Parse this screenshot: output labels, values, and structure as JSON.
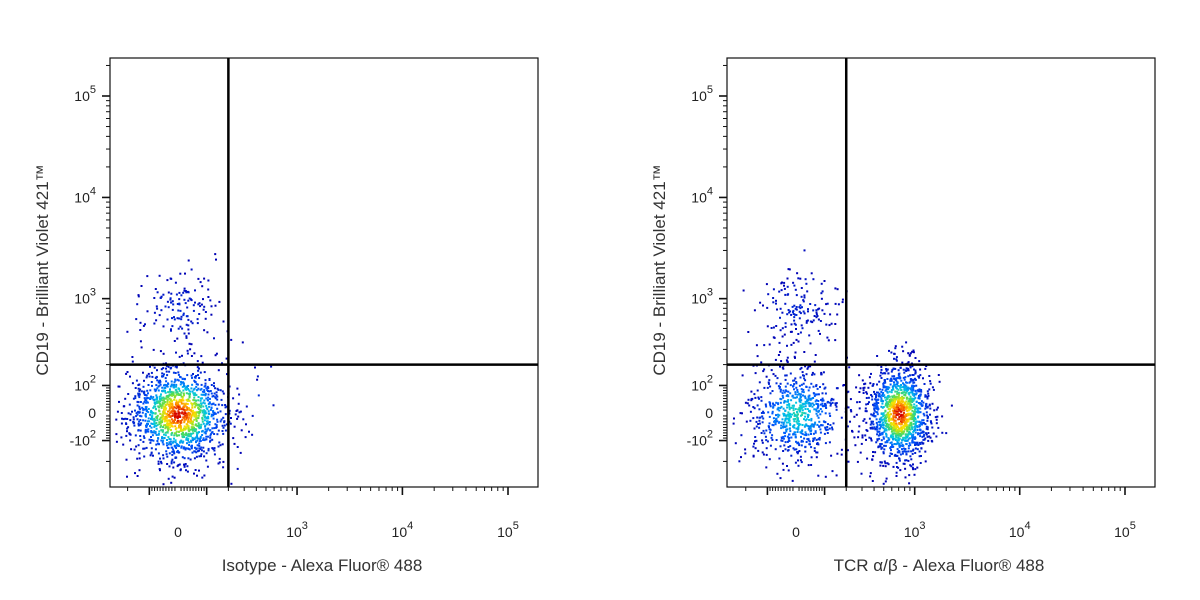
{
  "chart_data": [
    {
      "type": "scatter",
      "xlabel": "Isotype - Alexa Fluor® 488",
      "ylabel": "CD19 - Brilliant Violet 421™",
      "x_scale": "biexponential",
      "y_scale": "biexponential",
      "x_ticks": [
        "0",
        "10^3",
        "10^4",
        "10^5"
      ],
      "y_ticks": [
        "-10^2",
        "0",
        "10^2",
        "10^3",
        "10^4",
        "10^5"
      ],
      "quadrant_gate": {
        "x": 200,
        "y": 200
      },
      "populations": [
        {
          "x": 0,
          "y": 0,
          "count": 1400,
          "density": "high"
        },
        {
          "x": 0,
          "y": 800,
          "count": 140,
          "density": "low"
        },
        {
          "x": 400,
          "y": 60,
          "count": 10,
          "density": "low"
        }
      ]
    },
    {
      "type": "scatter",
      "xlabel": "TCR α/β - Alexa Fluor® 488",
      "ylabel": "CD19 - Brilliant Violet 421™",
      "x_scale": "biexponential",
      "y_scale": "biexponential",
      "x_ticks": [
        "0",
        "10^3",
        "10^4",
        "10^5"
      ],
      "y_ticks": [
        "-10^2",
        "0",
        "10^2",
        "10^3",
        "10^4",
        "10^5"
      ],
      "quadrant_gate": {
        "x": 200,
        "y": 200
      },
      "populations": [
        {
          "x": 0,
          "y": 0,
          "count": 700,
          "density": "medium"
        },
        {
          "x": 0,
          "y": 800,
          "count": 160,
          "density": "low"
        },
        {
          "x": 700,
          "y": 0,
          "count": 1300,
          "density": "high"
        }
      ]
    }
  ]
}
